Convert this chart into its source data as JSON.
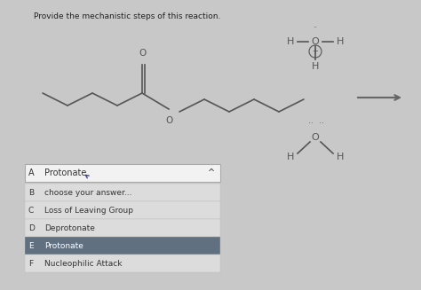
{
  "bg_color": "#c8c8c8",
  "content_bg": "#dcdcdc",
  "title_text": "Provide the mechanistic steps of this reaction.",
  "title_fontsize": 6.5,
  "title_color": "#222222",
  "lc": "#555555",
  "lw": 1.2,
  "arrow_color": "#666666",
  "text_color_normal": "#333333",
  "text_color_highlighted": "#ffffff",
  "highlight_bg": "#607080",
  "header_bg": "#f0f0f0",
  "dropdown_labels": [
    "A",
    "B",
    "C",
    "D",
    "E",
    "F"
  ],
  "dropdown_texts": [
    "Protonate",
    "choose your answer...",
    "Loss of Leaving Group",
    "Deprotonate",
    "Protonate",
    "Nucleophilic Attack"
  ],
  "dropdown_highlighted": [
    false,
    false,
    false,
    false,
    true,
    false
  ],
  "dropdown_header_idx": 0
}
